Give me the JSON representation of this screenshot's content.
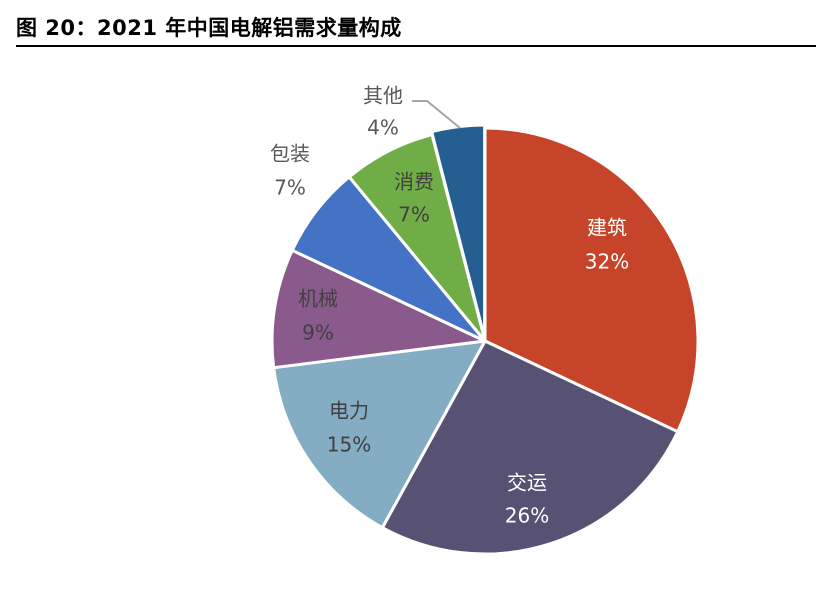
{
  "figure": {
    "title": "图 20：2021 年中国电解铝需求量构成"
  },
  "chart_data": {
    "type": "pie",
    "title": "",
    "slices": [
      {
        "label": "建筑",
        "value": 32,
        "value_label": "32%",
        "color": "#C5442A",
        "label_color": "#ffffff"
      },
      {
        "label": "交运",
        "value": 26,
        "value_label": "26%",
        "color": "#575274",
        "label_color": "#ffffff"
      },
      {
        "label": "电力",
        "value": 15,
        "value_label": "15%",
        "color": "#84ADC4",
        "label_color": "#404040"
      },
      {
        "label": "机械",
        "value": 9,
        "value_label": "9%",
        "color": "#8A5A8C",
        "label_color": "#404040"
      },
      {
        "label": "包装",
        "value": 7,
        "value_label": "7%",
        "color": "#4472C4",
        "label_color": "#595959"
      },
      {
        "label": "消费",
        "value": 7,
        "value_label": "7%",
        "color": "#70AD47",
        "label_color": "#404040"
      },
      {
        "label": "其他",
        "value": 4,
        "value_label": "4%",
        "color": "#255E91",
        "label_color": "#595959"
      }
    ],
    "start_angle_deg": 0,
    "direction": "clockwise",
    "legend": "none"
  }
}
